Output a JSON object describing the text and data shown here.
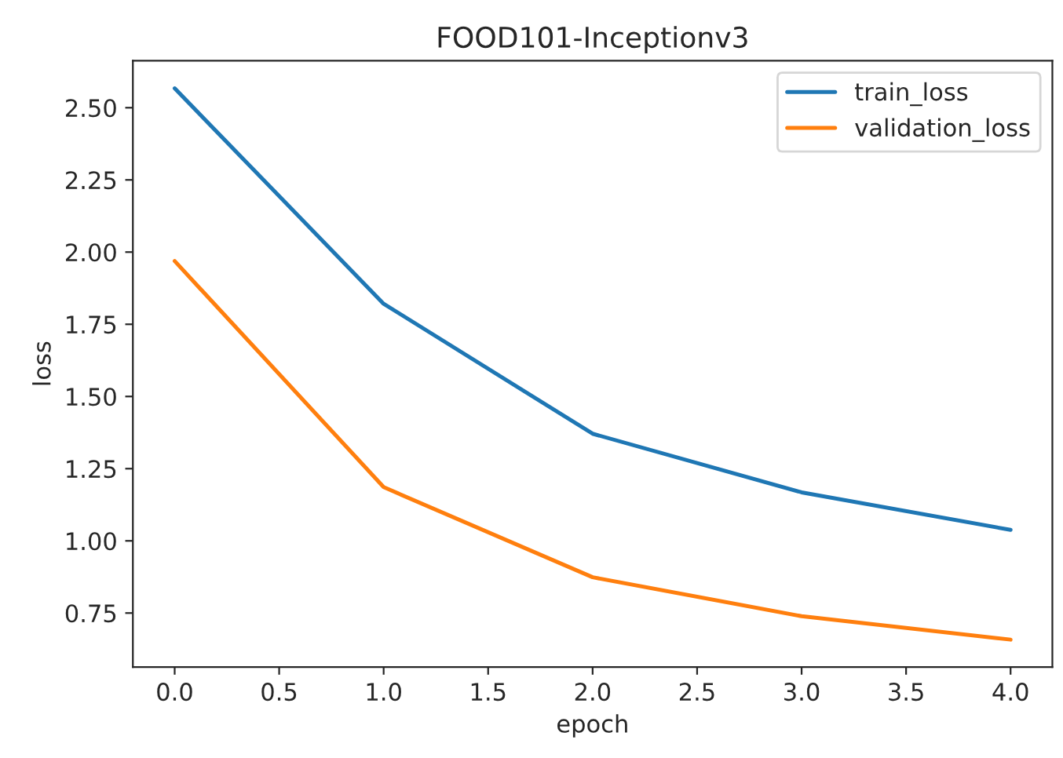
{
  "chart_data": {
    "type": "line",
    "title": "FOOD101-Inceptionv3",
    "xlabel": "epoch",
    "ylabel": "loss",
    "x": [
      0,
      1,
      2,
      3,
      4
    ],
    "series": [
      {
        "name": "train_loss",
        "color": "#1f77b4",
        "values": [
          2.567,
          1.821,
          1.371,
          1.168,
          1.038
        ]
      },
      {
        "name": "validation_loss",
        "color": "#ff7f0e",
        "values": [
          1.969,
          1.186,
          0.874,
          0.739,
          0.658
        ]
      }
    ],
    "xlim": [
      -0.2,
      4.2
    ],
    "xticks": [
      {
        "value": 0,
        "label": "0.0"
      },
      {
        "value": 0.5,
        "label": "0.5"
      },
      {
        "value": 1,
        "label": "1.0"
      },
      {
        "value": 1.5,
        "label": "1.5"
      },
      {
        "value": 2,
        "label": "2.0"
      },
      {
        "value": 2.5,
        "label": "2.5"
      },
      {
        "value": 3,
        "label": "3.0"
      },
      {
        "value": 3.5,
        "label": "3.5"
      },
      {
        "value": 4,
        "label": "4.0"
      }
    ],
    "ylim": [
      0.563,
      2.663
    ],
    "yticks": [
      {
        "value": 0.75,
        "label": "0.75"
      },
      {
        "value": 1,
        "label": "1.00"
      },
      {
        "value": 1.25,
        "label": "1.25"
      },
      {
        "value": 1.5,
        "label": "1.50"
      },
      {
        "value": 1.75,
        "label": "1.75"
      },
      {
        "value": 2,
        "label": "2.00"
      },
      {
        "value": 2.25,
        "label": "2.25"
      },
      {
        "value": 2.5,
        "label": "2.50"
      }
    ],
    "legend": "top right",
    "grid": false
  }
}
